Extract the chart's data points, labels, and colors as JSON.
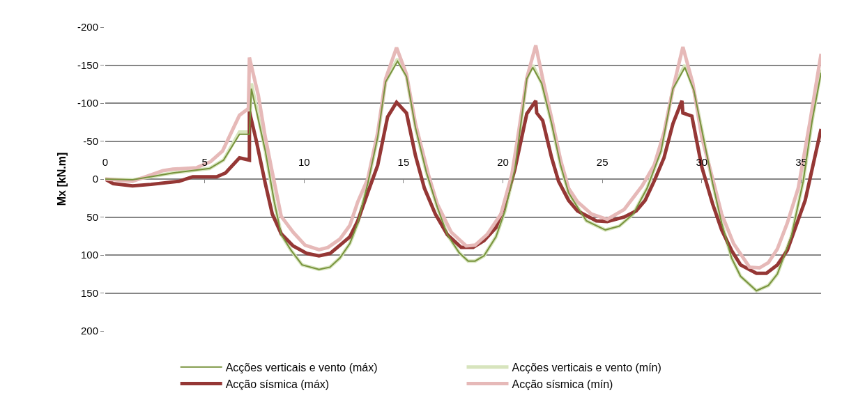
{
  "chart_data": {
    "type": "line",
    "ylabel": "Mx [kN.m]",
    "xlim": [
      0,
      36
    ],
    "xticks": [
      0,
      5,
      10,
      15,
      20,
      25,
      30,
      35
    ],
    "ylim": [
      200,
      -200
    ],
    "yticks": [
      -200,
      -150,
      -100,
      -50,
      0,
      50,
      100,
      150,
      200
    ],
    "grid": "y",
    "legend": "bottom",
    "series": [
      {
        "name": "Acções verticais e vento (máx)",
        "color": "#77933c",
        "x": [
          0,
          1.37,
          3.4,
          5.25,
          5.95,
          6.75,
          7.1,
          7.25,
          7.35,
          8.05,
          8.5,
          8.85,
          9.35,
          9.9,
          10.75,
          11.3,
          11.8,
          12.3,
          12.7,
          13.2,
          13.7,
          14.1,
          14.7,
          15.15,
          15.6,
          16.15,
          16.7,
          17.2,
          17.8,
          18.25,
          18.6,
          19.05,
          19.65,
          20.1,
          20.6,
          21.2,
          21.5,
          21.95,
          22.45,
          22.9,
          23.3,
          23.75,
          24.2,
          25.15,
          25.85,
          26.55,
          27.25,
          27.95,
          28.55,
          29.15,
          29.6,
          30.1,
          30.55,
          31,
          31.5,
          31.95,
          32.75,
          33.35,
          33.8,
          34.5,
          35.1,
          35.55,
          36
        ],
        "values": [
          0,
          1,
          -8,
          -14,
          -25,
          -59,
          -59,
          -59,
          -119,
          -37,
          30,
          73,
          94,
          113,
          119,
          116,
          104,
          85,
          58,
          6,
          -55,
          -128,
          -155,
          -135,
          -68,
          -9,
          37,
          73,
          97,
          108,
          108,
          101,
          76,
          42,
          -13,
          -132,
          -147,
          -126,
          -73,
          -18,
          18,
          37,
          55,
          67,
          62,
          46,
          12,
          -37,
          -119,
          -147,
          -117,
          -52,
          6,
          58,
          104,
          128,
          147,
          140,
          125,
          76,
          3,
          -77,
          -140
        ]
      },
      {
        "name": "Acções verticais e vento (mín)",
        "color": "#d7e4bd",
        "x": [
          0,
          1.37,
          3.4,
          5.25,
          5.95,
          6.75,
          7.1,
          7.25,
          7.35,
          8.05,
          8.5,
          8.85,
          9.35,
          9.9,
          10.75,
          11.3,
          11.8,
          12.3,
          12.7,
          13.2,
          13.7,
          14.1,
          14.7,
          15.15,
          15.6,
          16.15,
          16.7,
          17.2,
          17.8,
          18.25,
          18.6,
          19.05,
          19.65,
          20.1,
          20.6,
          21.2,
          21.5,
          21.95,
          22.45,
          22.9,
          23.3,
          23.75,
          24.2,
          25.15,
          25.85,
          26.55,
          27.25,
          27.95,
          28.55,
          29.15,
          29.6,
          30.1,
          30.55,
          31,
          31.5,
          31.95,
          32.75,
          33.35,
          33.8,
          34.5,
          35.1,
          35.55,
          36
        ],
        "values": [
          0,
          1,
          -8,
          -14,
          -25,
          -62,
          -62,
          -62,
          -126,
          -37,
          30,
          73,
          94,
          113,
          119,
          116,
          104,
          85,
          58,
          6,
          -55,
          -128,
          -158,
          -135,
          -68,
          -9,
          37,
          73,
          97,
          108,
          108,
          101,
          76,
          42,
          -13,
          -132,
          -150,
          -126,
          -73,
          -18,
          18,
          37,
          55,
          67,
          62,
          46,
          12,
          -37,
          -119,
          -150,
          -117,
          -52,
          6,
          58,
          104,
          128,
          147,
          140,
          125,
          76,
          3,
          -77,
          -144
        ]
      },
      {
        "name": "Acção sísmica (máx)",
        "color": "#953735",
        "x": [
          0,
          0.4,
          1.37,
          2.3,
          3.7,
          4.4,
          5.6,
          6.05,
          6.75,
          7.25,
          7.25,
          7.6,
          8.05,
          8.4,
          8.85,
          9.45,
          10.15,
          10.75,
          11.3,
          11.9,
          12.3,
          12.7,
          13.2,
          13.7,
          14.2,
          14.65,
          15.15,
          15.6,
          16.05,
          16.6,
          17.2,
          17.9,
          18.5,
          19.05,
          19.65,
          20.1,
          20.6,
          21.2,
          21.65,
          21.7,
          22,
          22.45,
          22.8,
          23.3,
          23.75,
          24.7,
          25.25,
          26.1,
          26.7,
          27.15,
          27.6,
          28.1,
          28.55,
          29.0,
          29.05,
          29.5,
          30,
          30.55,
          31,
          31.5,
          31.95,
          32.75,
          33.25,
          33.8,
          34.3,
          34.75,
          35.2,
          35.55,
          36
        ],
        "values": [
          0,
          6,
          9,
          7,
          3,
          -3,
          -3,
          -8,
          -28,
          -25,
          -89,
          -50,
          6,
          46,
          72,
          88,
          98,
          101,
          98,
          85,
          76,
          55,
          18,
          -18,
          -82,
          -101,
          -87,
          -31,
          12,
          46,
          73,
          90,
          90,
          81,
          64,
          33,
          -13,
          -86,
          -103,
          -87,
          -77,
          -28,
          3,
          28,
          42,
          55,
          56,
          50,
          42,
          28,
          3,
          -28,
          -73,
          -103,
          -87,
          -83,
          -16,
          33,
          67,
          94,
          113,
          124,
          124,
          113,
          94,
          61,
          28,
          -13,
          -66
        ]
      },
      {
        "name": "Acção sísmica (mín)",
        "color": "#e6b9b8",
        "x": [
          0,
          1.37,
          2.9,
          3.4,
          4.6,
          5.3,
          5.9,
          6.75,
          7.2,
          7.25,
          7.7,
          8.05,
          8.4,
          8.85,
          9.45,
          10.05,
          10.75,
          11.2,
          11.8,
          12.3,
          12.7,
          13.2,
          13.7,
          14.1,
          14.65,
          15.15,
          15.6,
          16.25,
          16.7,
          17.4,
          18.15,
          18.6,
          19.2,
          19.9,
          20.45,
          20.8,
          21.2,
          21.65,
          22.05,
          22.45,
          22.9,
          23.3,
          23.75,
          24.45,
          25.25,
          26.1,
          27,
          27.6,
          28.1,
          28.55,
          29.05,
          29.55,
          30,
          30.55,
          31,
          31.6,
          32.4,
          32.9,
          33.35,
          33.8,
          34.3,
          34.85,
          35.45,
          36
        ],
        "values": [
          0,
          3,
          -11,
          -13,
          -15,
          -23,
          -37,
          -84,
          -93,
          -160,
          -110,
          -55,
          -9,
          49,
          70,
          87,
          93,
          90,
          79,
          61,
          30,
          0,
          -61,
          -132,
          -173,
          -138,
          -73,
          -6,
          33,
          70,
          88,
          87,
          73,
          46,
          -6,
          -64,
          -133,
          -176,
          -126,
          -80,
          -25,
          12,
          30,
          46,
          53,
          40,
          9,
          -18,
          -61,
          -119,
          -174,
          -126,
          -55,
          0,
          46,
          85,
          116,
          117,
          110,
          92,
          58,
          12,
          -77,
          -165
        ]
      }
    ]
  }
}
